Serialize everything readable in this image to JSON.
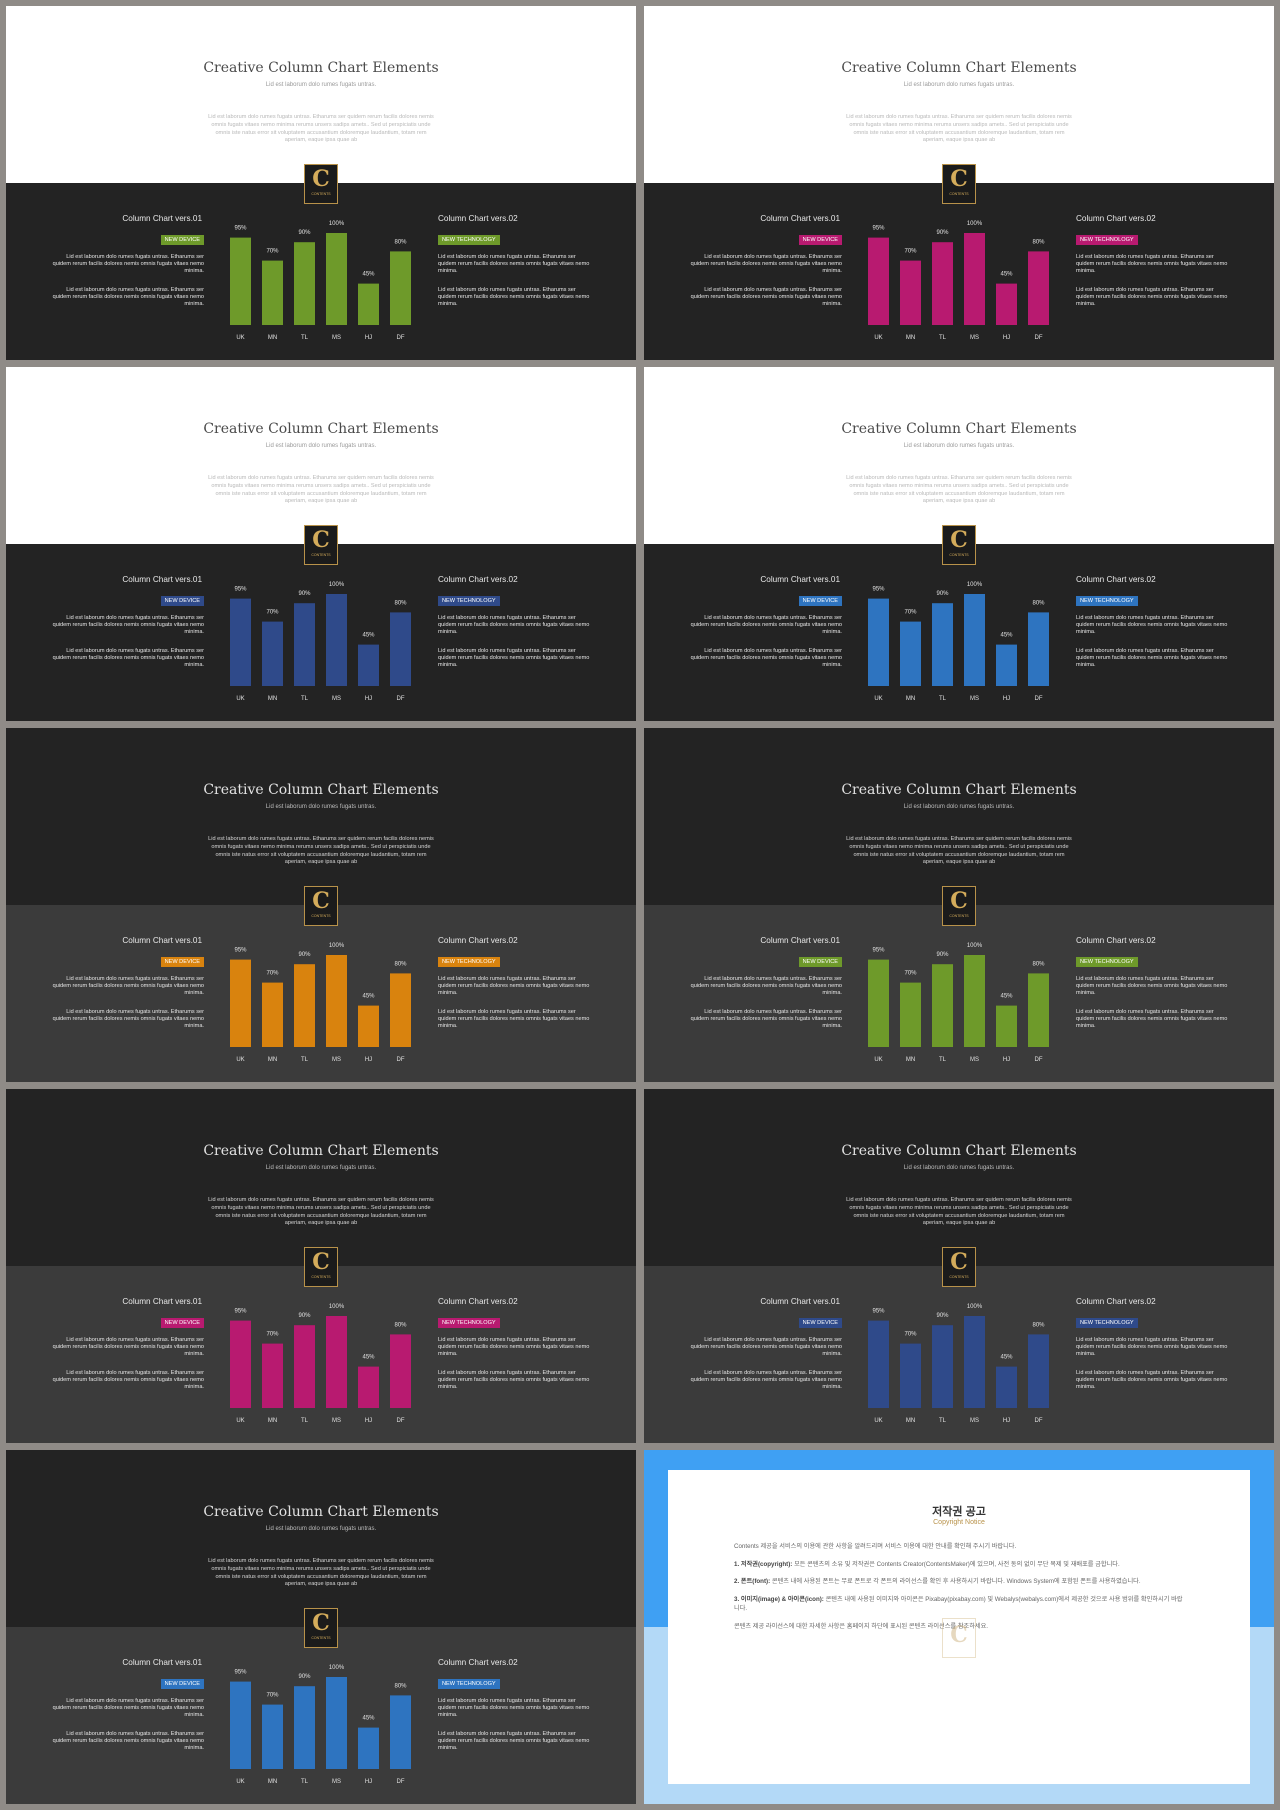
{
  "common": {
    "title": "Creative Column Chart Elements",
    "subtitle": "Lid est laborum dolo rumes fugats untras.",
    "description": "Lid est laborum dolo rumes fugats untras. Etharums ser quidem rerum facilis dolores nemis omnis fugats vitaes nemo minima rerums unsers sadips amets.. Sed ut perspiciatis unde omnis iste natus error sit voluptatem accusantium doloremque laudantium, totam rem aperiam, eaque ipsa quae ab",
    "logo_letter": "C",
    "logo_text": "CONTENTS",
    "left_title": "Column Chart vers.01",
    "right_title": "Column Chart vers.02",
    "left_tag": "NEW DEVICE",
    "right_tag": "NEW TECHNOLOGY",
    "para1": "Lid est laborum dolo rumes fugats untras. Etharums ser quidem rerum facilis dolores nemis omnis fugats vitaes nemo minima.",
    "para2": "Lid est laborum dolo rumes fugats untras. Etharums ser quidem rerum facilis dolores nemis omnis fugats vitaes nemo minima."
  },
  "chart_data": {
    "type": "bar",
    "categories": [
      "UK",
      "MN",
      "TL",
      "MS",
      "HJ",
      "DF"
    ],
    "values": [
      95,
      70,
      90,
      100,
      45,
      80
    ],
    "value_labels": [
      "95%",
      "70%",
      "90%",
      "100%",
      "45%",
      "80%"
    ],
    "ylim": [
      0,
      100
    ],
    "grid": false
  },
  "slides": [
    {
      "theme": "light",
      "accent": "#6e9a2a",
      "left_tag_color": "#6e9a2a",
      "right_tag_color": "#6e9a2a"
    },
    {
      "theme": "light",
      "accent": "#b81a70",
      "left_tag_color": "#b81a70",
      "right_tag_color": "#b81a70"
    },
    {
      "theme": "light",
      "accent": "#2f4a8a",
      "left_tag_color": "#2f4a8a",
      "right_tag_color": "#2f4a8a"
    },
    {
      "theme": "light",
      "accent": "#2e74c0",
      "left_tag_color": "#2e74c0",
      "right_tag_color": "#2e74c0"
    },
    {
      "theme": "dark",
      "accent": "#d9830e",
      "left_tag_color": "#d9830e",
      "right_tag_color": "#d9830e"
    },
    {
      "theme": "dark",
      "accent": "#6e9a2a",
      "left_tag_color": "#6e9a2a",
      "right_tag_color": "#6e9a2a"
    },
    {
      "theme": "dark",
      "accent": "#b81a70",
      "left_tag_color": "#b81a70",
      "right_tag_color": "#b81a70"
    },
    {
      "theme": "dark",
      "accent": "#2f4a8a",
      "left_tag_color": "#2f4a8a",
      "right_tag_color": "#2f4a8a"
    },
    {
      "theme": "dark",
      "accent": "#2e74c0",
      "left_tag_color": "#2e74c0",
      "right_tag_color": "#2e74c0"
    }
  ],
  "copyright": {
    "title": "저작권 공고",
    "subtitle": "Copyright Notice",
    "intro": "Contents 제공을 서비스의 이용에 관한 사항을 알려드리며 서비스 이용에 대한 안내를 확인해 주시기 바랍니다.",
    "item1_head": "1. 저작권(copyright):",
    "item1_text": "모든 콘텐츠의 소유 및 저작권은 Contents Creator(ContentsMaker)에 있으며, 사전 동의 없이 무단 복제 및 재배포를 금합니다.",
    "item2_head": "2. 폰트(font):",
    "item2_text": "콘텐츠 내에 사용된 폰트는 무료 폰트로 각 폰트의 라이선스를 확인 후 사용하시기 바랍니다. Windows System에 포함된 폰트를 사용하였습니다.",
    "item3_head": "3. 이미지(image) & 아이콘(icon):",
    "item3_text": "콘텐츠 내에 사용된 이미지와 아이콘은 Pixabay(pixabay.com) 및 Webalys(webalys.com)에서 제공한 것으로 사용 범위를 확인하시기 바랍니다.",
    "outro": "콘텐츠 제공 라이선스에 대한 자세한 사항은 홈페이지 하단에 표시된 콘텐츠 라이선스를 참조하세요.",
    "logo_letter": "C"
  }
}
